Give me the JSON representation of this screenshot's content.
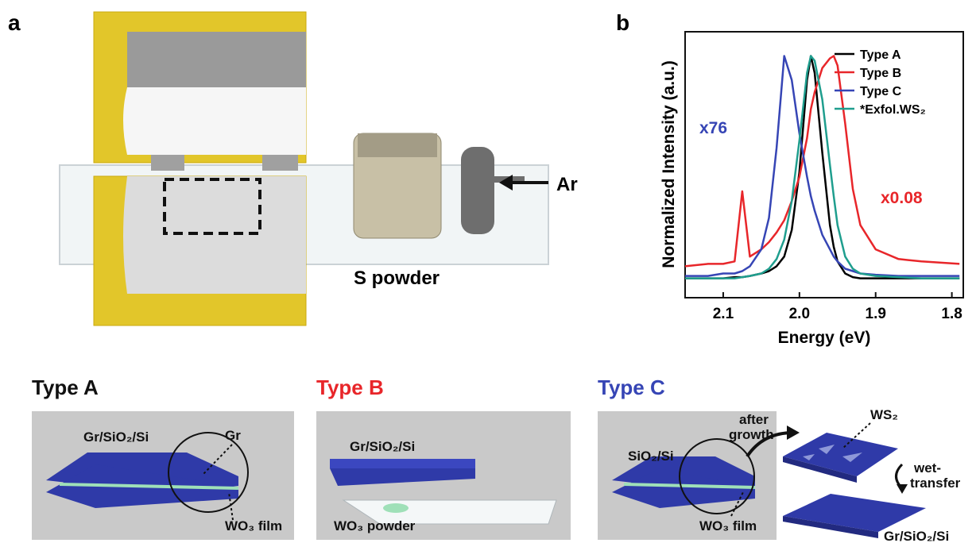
{
  "panel_a": {
    "label": "a",
    "gas": "Ar",
    "source": "S powder"
  },
  "panel_b": {
    "label": "b"
  },
  "chart_data": {
    "type": "line",
    "x_label": "Energy (eV)",
    "y_label": "Normalized Intensity (a.u.)",
    "x": [
      2.15,
      2.12,
      2.1,
      2.085,
      2.075,
      2.065,
      2.05,
      2.04,
      2.03,
      2.02,
      2.01,
      2.0,
      1.99,
      1.985,
      1.98,
      1.97,
      1.96,
      1.955,
      1.95,
      1.94,
      1.93,
      1.92,
      1.9,
      1.87,
      1.84,
      1.79
    ],
    "series": [
      {
        "name": "Type A",
        "color": "#000000",
        "values": [
          0.08,
          0.08,
          0.08,
          0.085,
          0.085,
          0.09,
          0.1,
          0.11,
          0.13,
          0.17,
          0.28,
          0.52,
          0.9,
          1.0,
          0.93,
          0.6,
          0.3,
          0.21,
          0.15,
          0.1,
          0.085,
          0.08,
          0.08,
          0.08,
          0.08,
          0.08
        ]
      },
      {
        "name": "Type B",
        "color": "#e8262a",
        "values": [
          0.13,
          0.14,
          0.14,
          0.15,
          0.44,
          0.17,
          0.2,
          0.23,
          0.27,
          0.32,
          0.4,
          0.5,
          0.66,
          0.78,
          0.85,
          0.95,
          0.99,
          1.0,
          0.96,
          0.72,
          0.45,
          0.3,
          0.2,
          0.16,
          0.15,
          0.14
        ]
      },
      {
        "name": "Type C",
        "color": "#3645b5",
        "values": [
          0.09,
          0.09,
          0.1,
          0.1,
          0.11,
          0.13,
          0.2,
          0.33,
          0.62,
          1.0,
          0.9,
          0.68,
          0.5,
          0.42,
          0.36,
          0.26,
          0.2,
          0.17,
          0.15,
          0.12,
          0.11,
          0.1,
          0.095,
          0.09,
          0.09,
          0.09
        ]
      },
      {
        "name": "*Exfol.WS₂",
        "color": "#1f9e8e",
        "values": [
          0.08,
          0.08,
          0.08,
          0.08,
          0.085,
          0.09,
          0.1,
          0.12,
          0.16,
          0.24,
          0.4,
          0.65,
          0.93,
          1.0,
          0.98,
          0.82,
          0.55,
          0.42,
          0.3,
          0.17,
          0.12,
          0.1,
          0.09,
          0.085,
          0.08,
          0.08
        ]
      }
    ],
    "xlim": [
      2.15,
      1.785
    ],
    "ylim": [
      0,
      1.1
    ],
    "xticks": [
      2.1,
      {
        "value": 2,
        "label": "2.0"
      },
      1.9,
      1.8
    ],
    "legend": "upper right",
    "annotations": [
      {
        "text": "x76",
        "color": "#3645b5"
      },
      {
        "text": "x0.08",
        "color": "#e8262a"
      }
    ]
  },
  "panels": [
    {
      "title": "Type A",
      "color": "#111111",
      "substrate": "Gr/SiO₂/Si",
      "layer": "Gr",
      "source": "WO₃ film"
    },
    {
      "title": "Type B",
      "color": "#e8262a",
      "substrate": "Gr/SiO₂/Si",
      "source": "WO₃ powder"
    },
    {
      "title": "Type C",
      "color": "#3645b5",
      "substrate": "SiO₂/Si",
      "source": "WO₃ film",
      "step1": [
        "after",
        "growth"
      ],
      "product": "WS₂",
      "step2": [
        "wet-",
        "transfer"
      ],
      "target": "Gr/SiO₂/Si"
    }
  ]
}
